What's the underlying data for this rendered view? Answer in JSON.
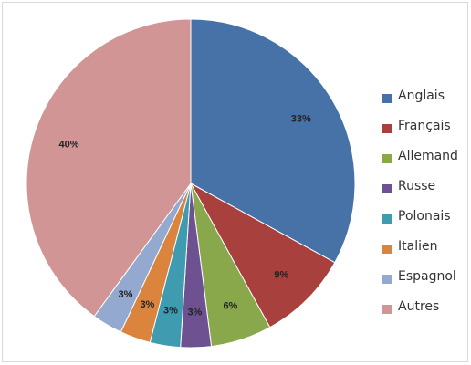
{
  "chart_data": {
    "type": "pie",
    "title": "",
    "categories": [
      "Anglais",
      "Français",
      "Allemand",
      "Russe",
      "Polonais",
      "Italien",
      "Espagnol",
      "Autres"
    ],
    "values": [
      33,
      9,
      6,
      3,
      3,
      3,
      3,
      40
    ],
    "value_labels": [
      "33%",
      "9%",
      "6%",
      "3%",
      "3%",
      "3%",
      "3%",
      "40%"
    ],
    "colors": [
      "#4672A8",
      "#A8403D",
      "#89A74B",
      "#6E5190",
      "#3F9BB0",
      "#DB843D",
      "#93A9CF",
      "#D09594"
    ],
    "legend_position": "right",
    "start_angle": "12 o'clock",
    "direction": "clockwise"
  }
}
